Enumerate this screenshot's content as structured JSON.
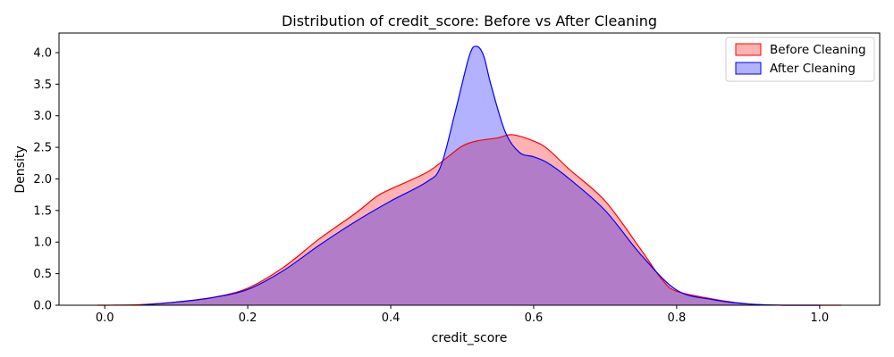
{
  "chart_data": {
    "type": "area",
    "title": "Distribution of credit_score: Before vs After Cleaning",
    "xlabel": "credit_score",
    "ylabel": "Density",
    "xlim": [
      -0.064,
      1.084
    ],
    "ylim": [
      0,
      4.31
    ],
    "xticks": [
      0.0,
      0.2,
      0.4,
      0.6,
      0.8,
      1.0
    ],
    "xtick_labels": [
      "0.0",
      "0.2",
      "0.4",
      "0.6",
      "0.8",
      "1.0"
    ],
    "yticks": [
      0.0,
      0.5,
      1.0,
      1.5,
      2.0,
      2.5,
      3.0,
      3.5,
      4.0
    ],
    "ytick_labels": [
      "0.0",
      "0.5",
      "1.0",
      "1.5",
      "2.0",
      "2.5",
      "3.0",
      "3.5",
      "4.0"
    ],
    "grid": false,
    "legend_position": "top-right",
    "series": [
      {
        "name": "Before Cleaning",
        "line_color": "#ff0000",
        "fill_color": "#ff0000",
        "fill_opacity": 0.3,
        "x": [
          -0.01,
          0.0,
          0.05,
          0.1,
          0.15,
          0.2,
          0.25,
          0.3,
          0.35,
          0.38,
          0.4,
          0.45,
          0.48,
          0.5,
          0.52,
          0.55,
          0.57,
          0.6,
          0.62,
          0.65,
          0.7,
          0.75,
          0.78,
          0.8,
          0.85,
          0.9,
          0.95,
          1.0,
          1.03
        ],
        "y": [
          0.0,
          0.0,
          0.01,
          0.05,
          0.12,
          0.27,
          0.6,
          1.05,
          1.45,
          1.72,
          1.84,
          2.1,
          2.35,
          2.52,
          2.6,
          2.65,
          2.7,
          2.6,
          2.47,
          2.15,
          1.65,
          0.88,
          0.4,
          0.22,
          0.1,
          0.02,
          0.0,
          0.0,
          0.0
        ]
      },
      {
        "name": "After Cleaning",
        "line_color": "#0000ff",
        "fill_color": "#0000ff",
        "fill_opacity": 0.3,
        "x": [
          0.05,
          0.1,
          0.15,
          0.2,
          0.25,
          0.3,
          0.35,
          0.4,
          0.45,
          0.47,
          0.49,
          0.51,
          0.52,
          0.53,
          0.54,
          0.56,
          0.58,
          0.6,
          0.62,
          0.65,
          0.7,
          0.75,
          0.8,
          0.85,
          0.9,
          0.95,
          1.0
        ],
        "y": [
          0.0,
          0.05,
          0.12,
          0.25,
          0.55,
          0.95,
          1.32,
          1.65,
          1.95,
          2.2,
          3.05,
          3.95,
          4.1,
          3.95,
          3.5,
          2.75,
          2.42,
          2.35,
          2.25,
          2.0,
          1.5,
          0.8,
          0.24,
          0.09,
          0.02,
          0.0,
          0.0
        ]
      }
    ]
  }
}
